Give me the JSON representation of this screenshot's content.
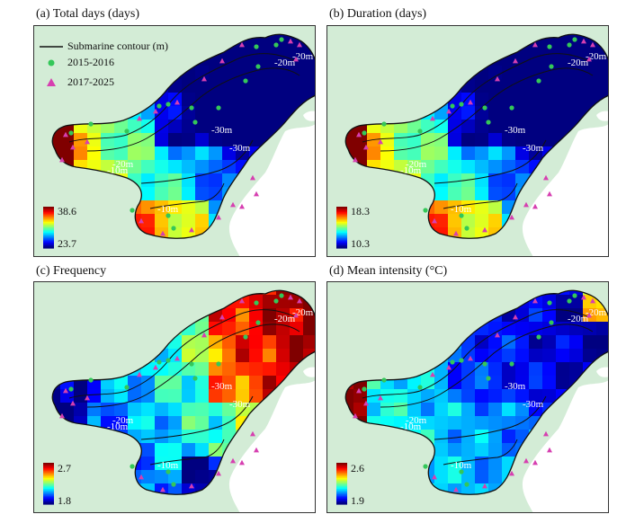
{
  "panels": [
    {
      "id": "a",
      "title": "(a) Total days (days)",
      "cbar_max": "38.6",
      "cbar_min": "23.7",
      "palette": "hot-west"
    },
    {
      "id": "b",
      "title": "(b) Duration (days)",
      "cbar_max": "18.3",
      "cbar_min": "10.3",
      "palette": "hot-west"
    },
    {
      "id": "c",
      "title": "(c) Frequency",
      "cbar_max": "2.7",
      "cbar_min": "1.8",
      "palette": "hot-east"
    },
    {
      "id": "d",
      "title": "(d) Mean intensity (°C)",
      "cbar_max": "2.6",
      "cbar_min": "1.9",
      "palette": "mid"
    }
  ],
  "legend": {
    "contour_label": "Submarine contour (m)",
    "series1_label": "2015-2016",
    "series2_label": "2017-2025"
  },
  "contour_labels": [
    "-20m",
    "-30m",
    "-30m",
    "-20m",
    "-10m",
    "-10m",
    "-20m"
  ],
  "colors": {
    "land": "#d3ecd6",
    "frame": "#333333",
    "contour": "#111111",
    "marker_2015": "#34c759",
    "marker_2017": "#d63fb0"
  }
}
